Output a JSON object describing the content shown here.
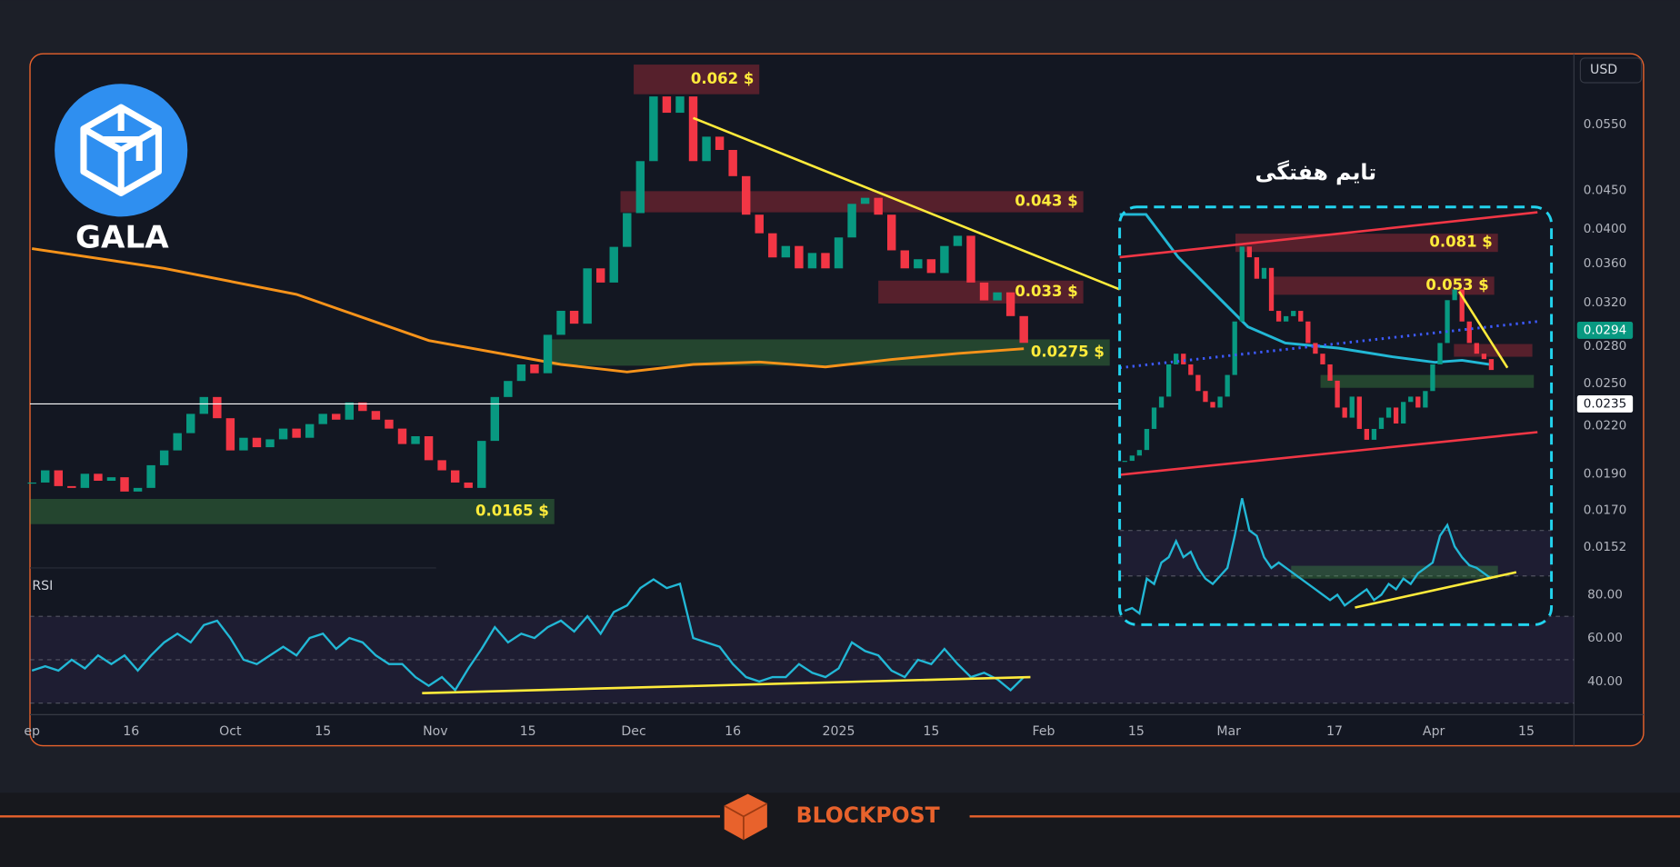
{
  "brand": "GALA",
  "currency": "USD",
  "watermark": "BLOCKPOST",
  "chart_data": [
    {
      "type": "candlestick",
      "log_scale": true,
      "grid": false,
      "up_color": "#089981",
      "down_color": "#f23645",
      "x": [
        0,
        2,
        4,
        6,
        8,
        10,
        12,
        14,
        16,
        18,
        20,
        22,
        24,
        26,
        28,
        30,
        32,
        34,
        36,
        38,
        40,
        42,
        44,
        46,
        48,
        50,
        52,
        54,
        56,
        58,
        60,
        62,
        64,
        66,
        68,
        70,
        72,
        74,
        76,
        78,
        80,
        82,
        84,
        86,
        88,
        90,
        92,
        94,
        96,
        98,
        100,
        102,
        104,
        106,
        108,
        110,
        112,
        114,
        116,
        118,
        120,
        122,
        124,
        126,
        128,
        130,
        132,
        134,
        136,
        138,
        140,
        142,
        144,
        146,
        148,
        150
      ],
      "values": [
        0.0185,
        0.0192,
        0.0183,
        0.0182,
        0.019,
        0.0186,
        0.0188,
        0.018,
        0.0182,
        0.0195,
        0.0204,
        0.0215,
        0.0228,
        0.024,
        0.0225,
        0.0204,
        0.0212,
        0.0206,
        0.0211,
        0.0218,
        0.0212,
        0.0221,
        0.0228,
        0.0224,
        0.0236,
        0.023,
        0.0224,
        0.0218,
        0.0208,
        0.0213,
        0.0198,
        0.0192,
        0.0185,
        0.0182,
        0.021,
        0.024,
        0.0252,
        0.0265,
        0.0258,
        0.029,
        0.0312,
        0.03,
        0.0355,
        0.034,
        0.0379,
        0.042,
        0.0492,
        0.0599,
        0.057,
        0.0599,
        0.0492,
        0.053,
        0.0509,
        0.047,
        0.0418,
        0.0395,
        0.0367,
        0.038,
        0.0355,
        0.0372,
        0.0355,
        0.039,
        0.0432,
        0.044,
        0.0418,
        0.0375,
        0.0355,
        0.0365,
        0.035,
        0.038,
        0.0392,
        0.034,
        0.0322,
        0.033,
        0.0307,
        0.0283
      ],
      "xlim": [
        -0.3,
        233.2
      ],
      "xticks": [
        {
          "value": 0,
          "label": "ep"
        },
        {
          "value": 15,
          "label": "16"
        },
        {
          "value": 30,
          "label": "Oct"
        },
        {
          "value": 44,
          "label": "15"
        },
        {
          "value": 61,
          "label": "Nov"
        },
        {
          "value": 75,
          "label": "15"
        },
        {
          "value": 91,
          "label": "Dec"
        },
        {
          "value": 106,
          "label": "16"
        },
        {
          "value": 122,
          "label": "2025"
        },
        {
          "value": 136,
          "label": "15"
        },
        {
          "value": 153,
          "label": "Feb"
        },
        {
          "value": 167,
          "label": "15"
        },
        {
          "value": 181,
          "label": "Mar"
        },
        {
          "value": 197,
          "label": "17"
        },
        {
          "value": 212,
          "label": "Apr"
        },
        {
          "value": 226,
          "label": "15"
        }
      ],
      "ylim": [
        0.01436,
        0.0682
      ],
      "yticks": [
        {
          "value": 0.055,
          "label": "0.0550"
        },
        {
          "value": 0.045,
          "label": "0.0450"
        },
        {
          "value": 0.04,
          "label": "0.0400"
        },
        {
          "value": 0.036,
          "label": "0.0360"
        },
        {
          "value": 0.032,
          "label": "0.0320"
        },
        {
          "value": 0.028,
          "label": "0.0280"
        },
        {
          "value": 0.025,
          "label": "0.0250"
        },
        {
          "value": 0.022,
          "label": "0.0220"
        },
        {
          "value": 0.019,
          "label": "0.0190"
        },
        {
          "value": 0.017,
          "label": "0.0170"
        },
        0.0152
      ],
      "moving_average": {
        "color": "#f7931a",
        "x": [
          0,
          20,
          40,
          60,
          80,
          90,
          100,
          110,
          120,
          130,
          140,
          150
        ],
        "values": [
          0.0377,
          0.0355,
          0.0328,
          0.0285,
          0.0265,
          0.0259,
          0.0265,
          0.0267,
          0.0263,
          0.0269,
          0.0274,
          0.0278
        ]
      },
      "zones": [
        {
          "label": "0.062 $",
          "color": "#f23645",
          "x": [
            91,
            110
          ],
          "y": [
            0.0603,
            0.066
          ]
        },
        {
          "label": "0.043 $",
          "color": "#f23645",
          "x": [
            89,
            159
          ],
          "y": [
            0.0421,
            0.0449
          ]
        },
        {
          "label": "0.033 $",
          "color": "#f23645",
          "x": [
            128,
            159
          ],
          "y": [
            0.0319,
            0.0342
          ]
        },
        {
          "label": "0.0275 $",
          "color": "#4caf50",
          "x": [
            78,
            163
          ],
          "y": [
            0.0264,
            0.0286
          ]
        },
        {
          "label": "0.0165 $",
          "color": "#4caf50",
          "x": [
            -0.3,
            79
          ],
          "y": [
            0.0163,
            0.0176
          ]
        }
      ],
      "trendlines": [
        {
          "color": "#ffeb3b",
          "x": [
            100,
            164.5
          ],
          "y": [
            0.0561,
            0.0333
          ]
        }
      ],
      "price_tags": [
        {
          "value": 0.0294,
          "color": "#089981"
        },
        {
          "value": 0.0235,
          "color": "#ffffff",
          "line": true
        }
      ]
    },
    {
      "type": "line",
      "title": "RSI",
      "color": "#22b8d6",
      "x": [
        0,
        2,
        4,
        6,
        8,
        10,
        12,
        14,
        16,
        18,
        20,
        22,
        24,
        26,
        28,
        30,
        32,
        34,
        36,
        38,
        40,
        42,
        44,
        46,
        48,
        50,
        52,
        54,
        56,
        58,
        60,
        62,
        64,
        66,
        68,
        70,
        72,
        74,
        76,
        78,
        80,
        82,
        84,
        86,
        88,
        90,
        92,
        94,
        96,
        98,
        100,
        102,
        104,
        106,
        108,
        110,
        112,
        114,
        116,
        118,
        120,
        122,
        124,
        126,
        128,
        130,
        132,
        134,
        136,
        138,
        140,
        142,
        144,
        146,
        148,
        150
      ],
      "values": [
        45,
        47,
        45,
        50,
        46,
        52,
        48,
        52,
        45,
        52,
        58,
        62,
        58,
        66,
        68,
        60,
        50,
        48,
        52,
        56,
        52,
        60,
        62,
        55,
        60,
        58,
        52,
        48,
        48,
        42,
        38,
        42,
        36,
        46,
        55,
        65,
        58,
        62,
        60,
        65,
        68,
        63,
        70,
        62,
        72,
        75,
        83,
        87,
        83,
        85,
        60,
        58,
        56,
        48,
        42,
        40,
        42,
        42,
        48,
        44,
        42,
        46,
        58,
        54,
        52,
        45,
        42,
        50,
        48,
        55,
        48,
        42,
        44,
        41,
        36,
        42
      ],
      "ylim": [
        24.7,
        92.3
      ],
      "yticks": [
        {
          "value": 80,
          "label": "80.00"
        },
        {
          "value": 60,
          "label": "60.00"
        },
        {
          "value": 40,
          "label": "40.00"
        }
      ],
      "bands": [
        30,
        50,
        70
      ],
      "trendlines": [
        {
          "color": "#ffeb3b",
          "x": [
            59,
            151
          ],
          "y": [
            34.6,
            42.0
          ]
        }
      ]
    },
    {
      "type": "candlestick",
      "title": "تایم هفتگی",
      "log_scale": true,
      "up_color": "#089981",
      "down_color": "#f23645",
      "x": [
        0,
        1,
        2,
        3,
        4,
        5,
        6,
        7,
        8,
        9,
        10,
        11,
        12,
        13,
        14,
        15,
        16,
        17,
        18,
        19,
        20,
        21,
        22,
        23,
        24,
        25,
        26,
        27,
        28,
        29,
        30,
        31,
        32,
        33,
        34,
        35,
        36,
        37,
        38,
        39,
        40,
        41,
        42,
        43,
        44,
        45,
        46,
        47,
        48,
        49,
        50
      ],
      "values": [
        0.00925,
        0.00975,
        0.0103,
        0.0127,
        0.0157,
        0.0175,
        0.0241,
        0.0268,
        0.0241,
        0.0217,
        0.0185,
        0.0166,
        0.0157,
        0.0175,
        0.0217,
        0.0369,
        0.0776,
        0.0698,
        0.0564,
        0.0628,
        0.041,
        0.0369,
        0.0389,
        0.041,
        0.0369,
        0.0298,
        0.0268,
        0.0241,
        0.0205,
        0.0157,
        0.0142,
        0.0175,
        0.0127,
        0.0114,
        0.0127,
        0.0142,
        0.0157,
        0.0134,
        0.0166,
        0.0175,
        0.0157,
        0.0185,
        0.0241,
        0.0298,
        0.0456,
        0.0507,
        0.0369,
        0.0298,
        0.0268,
        0.0254,
        0.0228
      ],
      "xlim": [
        -0.7,
        58.2
      ],
      "ylim": [
        0.00748,
        0.1126
      ],
      "moving_average": {
        "color": "#22b8d6",
        "x": [
          -0.7,
          2.9,
          7.3,
          11.7,
          16.8,
          21.9,
          29.2,
          36.5,
          42.3,
          46,
          49.7
        ],
        "values": [
          0.1068,
          0.1068,
          0.0698,
          0.0507,
          0.035,
          0.0298,
          0.0283,
          0.026,
          0.0246,
          0.0251,
          0.0241
        ]
      },
      "zones": [
        {
          "label": "0.081 $",
          "color": "#f23645",
          "x": [
            15.1,
            50.9
          ],
          "y": [
            0.0736,
            0.0882
          ]
        },
        {
          "label": "0.053 $",
          "color": "#f23645",
          "x": [
            20.0,
            50.4
          ],
          "y": [
            0.0481,
            0.0576
          ]
        },
        {
          "color": "#f23645",
          "x": [
            44.9,
            55.6
          ],
          "y": [
            0.026,
            0.0295
          ]
        },
        {
          "color": "#4caf50",
          "x": [
            26.7,
            55.8
          ],
          "y": [
            0.0191,
            0.0217
          ]
        }
      ],
      "trendlines": [
        {
          "color": "#f23645",
          "x": [
            -0.7,
            56.3
          ],
          "y": [
            0.0698,
            0.1091
          ]
        },
        {
          "color": "#f23645",
          "x": [
            -0.7,
            56.3
          ],
          "y": [
            0.00805,
            0.0123
          ]
        },
        {
          "color": "#3d5afe",
          "dash": true,
          "x": [
            -0.7,
            56.3
          ],
          "y": [
            0.0233,
            0.0369
          ]
        },
        {
          "color": "#ffeb3b",
          "x": [
            45.6,
            52.2
          ],
          "y": [
            0.0497,
            0.0233
          ]
        }
      ]
    },
    {
      "type": "line",
      "color": "#22b8d6",
      "x": [
        0,
        1,
        2,
        3,
        4,
        5,
        6,
        7,
        8,
        9,
        10,
        11,
        12,
        13,
        14,
        15,
        16,
        17,
        18,
        19,
        20,
        21,
        22,
        23,
        24,
        25,
        26,
        27,
        28,
        29,
        30,
        31,
        32,
        33,
        34,
        35,
        36,
        37,
        38,
        39,
        40,
        41,
        42,
        43,
        44,
        45,
        46,
        47,
        48,
        49,
        50
      ],
      "values": [
        8,
        10,
        6,
        32,
        28,
        44,
        48,
        60,
        48,
        52,
        40,
        32,
        28,
        34,
        40,
        64,
        92,
        68,
        64,
        48,
        40,
        44,
        40,
        36,
        32,
        28,
        24,
        20,
        16,
        20,
        12,
        16,
        20,
        24,
        16,
        20,
        28,
        24,
        32,
        28,
        36,
        40,
        44,
        64,
        72,
        56,
        48,
        42,
        40,
        36,
        32
      ],
      "ylim": [
        0,
        100
      ],
      "bands": [
        34,
        68
      ],
      "zones": [
        {
          "color": "#4caf50",
          "x": [
            22.7,
            50.9
          ],
          "y": [
            32,
            41.6
          ]
        }
      ],
      "trendlines": [
        {
          "color": "#ffeb3b",
          "x": [
            31.4,
            53.4
          ],
          "y": [
            10.4,
            36.8
          ]
        }
      ]
    }
  ]
}
